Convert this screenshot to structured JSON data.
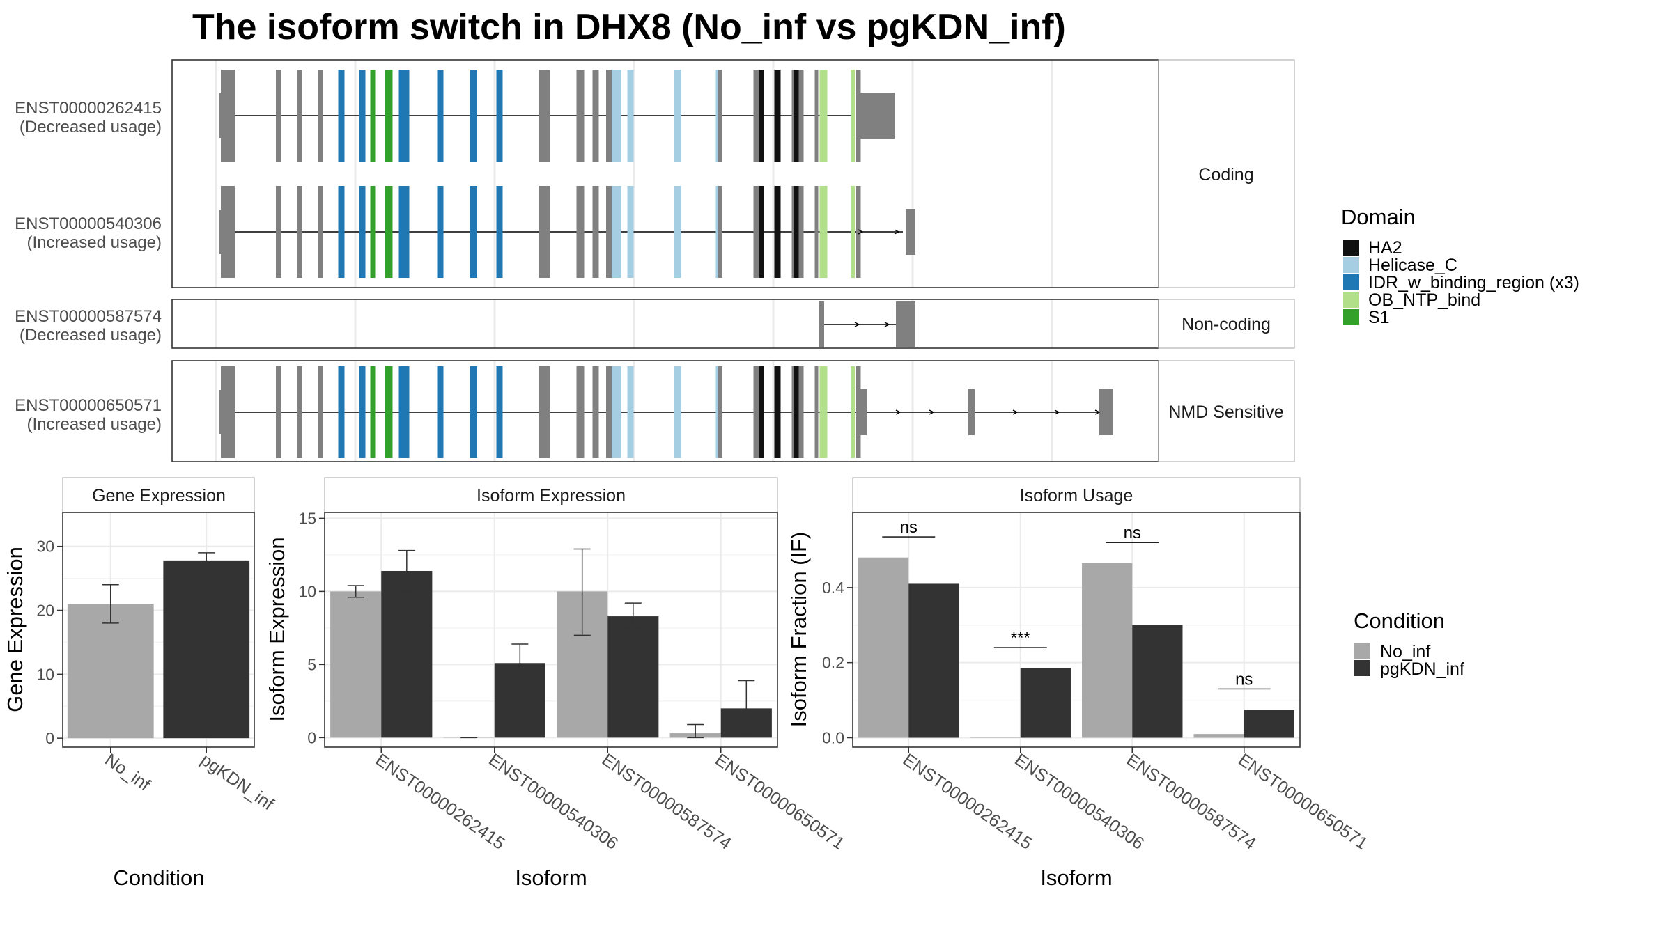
{
  "title": "The isoform switch in DHX8 (No_inf vs pgKDN_inf)",
  "colors": {
    "intron": "#000000",
    "exon": "#808080",
    "panel_border": "#333333",
    "strip_border": "#b3b3b3",
    "grid": "#ebebeb",
    "no_inf": "#a8a8a8",
    "pgkdn_inf": "#333333"
  },
  "structure": {
    "groups": [
      {
        "strip": "Coding",
        "isoforms": [
          {
            "id": "ENST00000262415",
            "usage": "(Decreased usage)"
          },
          {
            "id": "ENST00000540306",
            "usage": "(Increased usage)"
          }
        ]
      },
      {
        "strip": "Non-coding",
        "isoforms": [
          {
            "id": "ENST00000587574",
            "usage": "(Decreased usage)"
          }
        ]
      },
      {
        "strip": "NMD Sensitive",
        "isoforms": [
          {
            "id": "ENST00000650571",
            "usage": "(Increased usage)"
          }
        ]
      }
    ],
    "domain_legend": {
      "title": "Domain",
      "entries": [
        {
          "name": "HA2",
          "color": "#111111"
        },
        {
          "name": "Helicase_C",
          "color": "#a6cee3"
        },
        {
          "name": "IDR_w_binding_region (x3)",
          "color": "#1f78b4"
        },
        {
          "name": "OB_NTP_bind",
          "color": "#b2df8a"
        },
        {
          "name": "S1",
          "color": "#33a02c"
        }
      ]
    }
  },
  "condition_legend": {
    "title": "Condition",
    "entries": [
      {
        "name": "No_inf",
        "color": "#a8a8a8"
      },
      {
        "name": "pgKDN_inf",
        "color": "#333333"
      }
    ]
  },
  "chart_data": [
    {
      "type": "bar",
      "strip": "Gene Expression",
      "xlabel": "Condition",
      "ylabel": "Gene Expression",
      "categories": [
        "No_inf",
        "pgKDN_inf"
      ],
      "values": [
        21.0,
        27.8
      ],
      "err_low": [
        18.0,
        26.5
      ],
      "err_high": [
        24.0,
        29.0
      ],
      "ylim": [
        -1.4,
        35.3
      ],
      "yticks": [
        0,
        10,
        20,
        30
      ]
    },
    {
      "type": "bar",
      "strip": "Isoform Expression",
      "xlabel": "Isoform",
      "ylabel": "Isoform Expression",
      "categories": [
        "ENST00000262415",
        "ENST00000540306",
        "ENST00000587574",
        "ENST00000650571"
      ],
      "series": [
        {
          "name": "No_inf",
          "values": [
            10.0,
            0.0,
            10.0,
            0.3
          ],
          "err_low": [
            9.6,
            0.0,
            7.0,
            0.0
          ],
          "err_high": [
            10.4,
            0.0,
            12.9,
            0.9
          ]
        },
        {
          "name": "pgKDN_inf",
          "values": [
            11.4,
            5.1,
            8.3,
            2.0
          ],
          "err_low": [
            10.0,
            4.0,
            7.5,
            0.2
          ],
          "err_high": [
            12.8,
            6.4,
            9.2,
            3.9
          ]
        }
      ],
      "ylim": [
        -0.65,
        15.4
      ],
      "yticks": [
        0,
        5,
        10,
        15
      ]
    },
    {
      "type": "bar",
      "strip": "Isoform Usage",
      "xlabel": "Isoform",
      "ylabel": "Isoform Fraction (IF)",
      "categories": [
        "ENST00000262415",
        "ENST00000540306",
        "ENST00000587574",
        "ENST00000650571"
      ],
      "series": [
        {
          "name": "No_inf",
          "values": [
            0.48,
            0.0,
            0.465,
            0.01
          ]
        },
        {
          "name": "pgKDN_inf",
          "values": [
            0.41,
            0.185,
            0.3,
            0.075
          ]
        }
      ],
      "significance": [
        "ns",
        "***",
        "ns",
        "ns"
      ],
      "ylim": [
        -0.025,
        0.6
      ],
      "yticks": [
        0.0,
        0.2,
        0.4
      ],
      "ytick_labels": [
        "0.0",
        "0.2",
        "0.4"
      ]
    }
  ]
}
